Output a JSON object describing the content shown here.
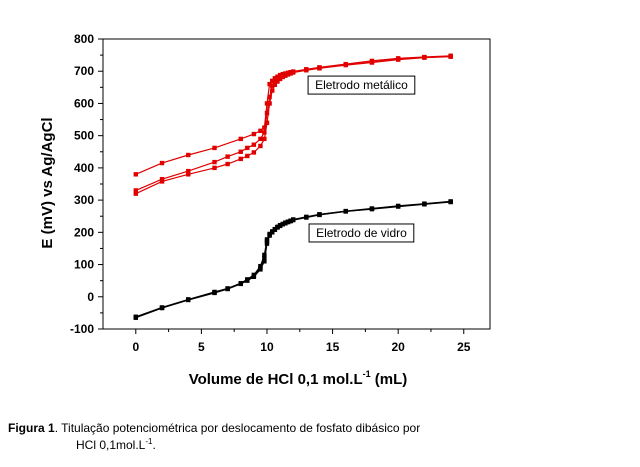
{
  "chart_data": {
    "type": "scatter",
    "xlabel_main": "Volume de HCl 0,1 mol.L",
    "xlabel_sup": "-1",
    "xlabel_end": " (mL)",
    "ylabel": "E (mV) vs Ag/AgCl",
    "xlim": [
      -2.5,
      27
    ],
    "ylim": [
      -100,
      800
    ],
    "x_ticks": [
      0,
      5,
      10,
      15,
      20,
      25
    ],
    "y_ticks": [
      -100,
      0,
      100,
      200,
      300,
      400,
      500,
      600,
      700,
      800
    ],
    "grid": false,
    "colors": {
      "metal": "#e00000",
      "glass": "#000000"
    },
    "annotations": [
      {
        "text": "Eletrodo metálico",
        "x": 17.2,
        "y": 657
      },
      {
        "text": "Eletrodo de vidro",
        "x": 17.2,
        "y": 198
      }
    ],
    "series": [
      {
        "color": "#e00000",
        "x": [
          0,
          2,
          4,
          6,
          8,
          9,
          9.5,
          9.8,
          10,
          10.2,
          10.4,
          10.6,
          10.8,
          11,
          11.2,
          11.4,
          11.6,
          11.8,
          12,
          13,
          14,
          16,
          18,
          20,
          22,
          24
        ],
        "y": [
          380,
          415,
          440,
          462,
          490,
          505,
          515,
          525,
          600,
          660,
          670,
          678,
          683,
          688,
          691,
          693,
          695,
          697,
          699,
          706,
          712,
          722,
          732,
          740,
          744,
          748
        ]
      },
      {
        "color": "#e00000",
        "x": [
          0,
          2,
          4,
          6,
          7,
          8,
          8.5,
          9,
          9.5,
          9.8,
          10,
          10.2,
          10.4,
          10.6,
          10.8,
          11,
          11.2,
          11.4,
          11.6,
          11.8,
          12,
          13,
          14,
          16,
          18,
          20,
          22,
          24
        ],
        "y": [
          330,
          365,
          390,
          418,
          435,
          450,
          462,
          472,
          490,
          510,
          570,
          620,
          655,
          668,
          676,
          683,
          688,
          691,
          694,
          696,
          698,
          705,
          711,
          720,
          728,
          738,
          743,
          746
        ]
      },
      {
        "color": "#e00000",
        "x": [
          0,
          2,
          4,
          6,
          7,
          8,
          8.5,
          9,
          9.5,
          9.8,
          10,
          10.2,
          10.4,
          10.6,
          10.8,
          11,
          11.2,
          11.4,
          11.6,
          11.8,
          12,
          13,
          14,
          16,
          18,
          20,
          22,
          24
        ],
        "y": [
          320,
          358,
          380,
          400,
          412,
          428,
          437,
          448,
          468,
          490,
          540,
          600,
          640,
          658,
          668,
          676,
          682,
          686,
          690,
          693,
          696,
          703,
          709,
          719,
          727,
          736,
          742,
          745
        ]
      },
      {
        "color": "#000000",
        "x": [
          0,
          2,
          4,
          6,
          7,
          8,
          8.5,
          9,
          9.5,
          9.8,
          10,
          10.2,
          10.4,
          10.6,
          10.8,
          11,
          11.2,
          11.4,
          11.6,
          11.8,
          12,
          13,
          14,
          16,
          18,
          20,
          22,
          24
        ],
        "y": [
          -65,
          -35,
          -10,
          12,
          24,
          40,
          50,
          62,
          85,
          110,
          165,
          190,
          200,
          208,
          215,
          220,
          225,
          228,
          232,
          235,
          238,
          246,
          254,
          265,
          272,
          280,
          287,
          294
        ]
      },
      {
        "color": "#000000",
        "x": [
          0,
          2,
          4,
          6,
          7,
          8,
          8.5,
          9,
          9.5,
          9.8,
          10,
          10.2,
          10.4,
          10.6,
          10.8,
          11,
          11.2,
          11.4,
          11.6,
          11.8,
          12,
          13,
          14,
          16,
          18,
          20,
          22,
          24
        ],
        "y": [
          -62,
          -33,
          -8,
          15,
          26,
          42,
          54,
          68,
          95,
          130,
          178,
          195,
          203,
          210,
          217,
          222,
          226,
          230,
          233,
          236,
          240,
          248,
          256,
          266,
          274,
          282,
          289,
          296
        ]
      },
      {
        "color": "#000000",
        "x": [
          0,
          2,
          4,
          6,
          7,
          8,
          8.5,
          9,
          9.5,
          9.8,
          10,
          10.2,
          10.4,
          10.6,
          10.8,
          11,
          11.2,
          11.4,
          11.6,
          11.8,
          12,
          13,
          14,
          16,
          18,
          20,
          22,
          24
        ],
        "y": [
          -64,
          -34,
          -9,
          13,
          25,
          41,
          52,
          65,
          90,
          120,
          172,
          192,
          201,
          209,
          216,
          221,
          225,
          229,
          232,
          235,
          239,
          247,
          255,
          265,
          273,
          281,
          288,
          295
        ]
      }
    ]
  },
  "caption": {
    "label": "Figura 1",
    "text_line1": ". Titulação potenciométrica por deslocamento de fosfato dibásico por",
    "text_line2_main": "HCl 0,1mol.L",
    "text_line2_sup": "-1",
    "text_line2_end": "."
  }
}
